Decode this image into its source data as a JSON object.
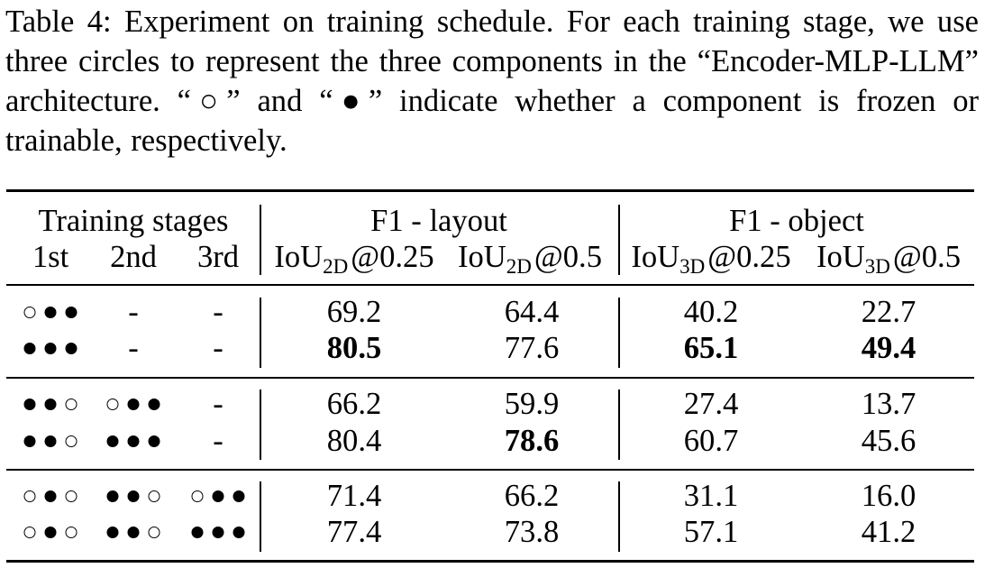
{
  "caption": "Table 4: Experiment on training schedule. For each training stage, we use three circles to represent the three components in the “Encoder-MLP-LLM” architecture. “○” and “●” indicate whether a component is frozen or trainable, respectively.",
  "header": {
    "group_training": "Training stages",
    "stage1": "1st",
    "stage2": "2nd",
    "stage3": "3rd",
    "group_layout": "F1 - layout",
    "group_object": "F1 - object",
    "iou_prefix": "IoU",
    "layout_sub": "2D",
    "object_sub": "3D",
    "th_025": "@0.25",
    "th_05": "@0.5"
  },
  "rows": [
    {
      "stages": [
        "○●●",
        "-",
        "-"
      ],
      "values": [
        "69.2",
        "64.4",
        "40.2",
        "22.7"
      ],
      "bold": [
        false,
        false,
        false,
        false
      ]
    },
    {
      "stages": [
        "●●●",
        "-",
        "-"
      ],
      "values": [
        "80.5",
        "77.6",
        "65.1",
        "49.4"
      ],
      "bold": [
        true,
        false,
        true,
        true
      ]
    },
    {
      "stages": [
        "●●○",
        "○●●",
        "-"
      ],
      "values": [
        "66.2",
        "59.9",
        "27.4",
        "13.7"
      ],
      "bold": [
        false,
        false,
        false,
        false
      ]
    },
    {
      "stages": [
        "●●○",
        "●●●",
        "-"
      ],
      "values": [
        "80.4",
        "78.6",
        "60.7",
        "45.6"
      ],
      "bold": [
        false,
        true,
        false,
        false
      ]
    },
    {
      "stages": [
        "○●○",
        "●●○",
        "○●●"
      ],
      "values": [
        "71.4",
        "66.2",
        "31.1",
        "16.0"
      ],
      "bold": [
        false,
        false,
        false,
        false
      ]
    },
    {
      "stages": [
        "○●○",
        "●●○",
        "●●●"
      ],
      "values": [
        "77.4",
        "73.8",
        "57.1",
        "41.2"
      ],
      "bold": [
        false,
        false,
        false,
        false
      ]
    }
  ]
}
